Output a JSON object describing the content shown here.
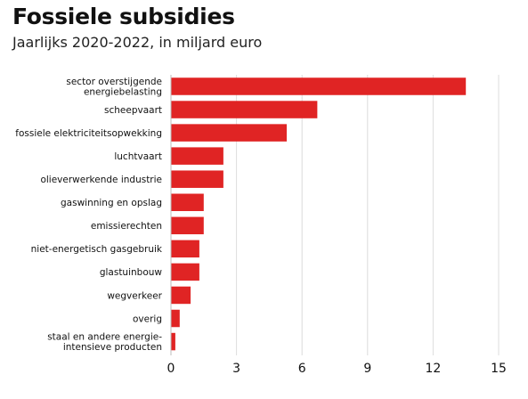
{
  "chart_data": {
    "type": "bar",
    "orientation": "horizontal",
    "title": "Fossiele subsidies",
    "subtitle": "Jaarlijks 2020-2022, in miljard euro",
    "categories": [
      [
        "sector overstijgende",
        "energiebelasting"
      ],
      [
        "scheepvaart"
      ],
      [
        "fossiele elektriciteitsopwekking"
      ],
      [
        "luchtvaart"
      ],
      [
        "olieverwerkende industrie"
      ],
      [
        "gaswinning en opslag"
      ],
      [
        "emissierechten"
      ],
      [
        "niet-energetisch gasgebruik"
      ],
      [
        "glastuinbouw"
      ],
      [
        "wegverkeer"
      ],
      [
        "overig"
      ],
      [
        "staal en andere energie-",
        "intensieve producten"
      ]
    ],
    "values": [
      13.5,
      6.7,
      5.3,
      2.4,
      2.4,
      1.5,
      1.5,
      1.3,
      1.3,
      0.9,
      0.4,
      0.2
    ],
    "xlim": [
      0,
      15
    ],
    "xticks": [
      "0",
      "3",
      "6",
      "9",
      "12",
      "15"
    ],
    "grid": "vertical",
    "bar_color": "#e02424"
  }
}
